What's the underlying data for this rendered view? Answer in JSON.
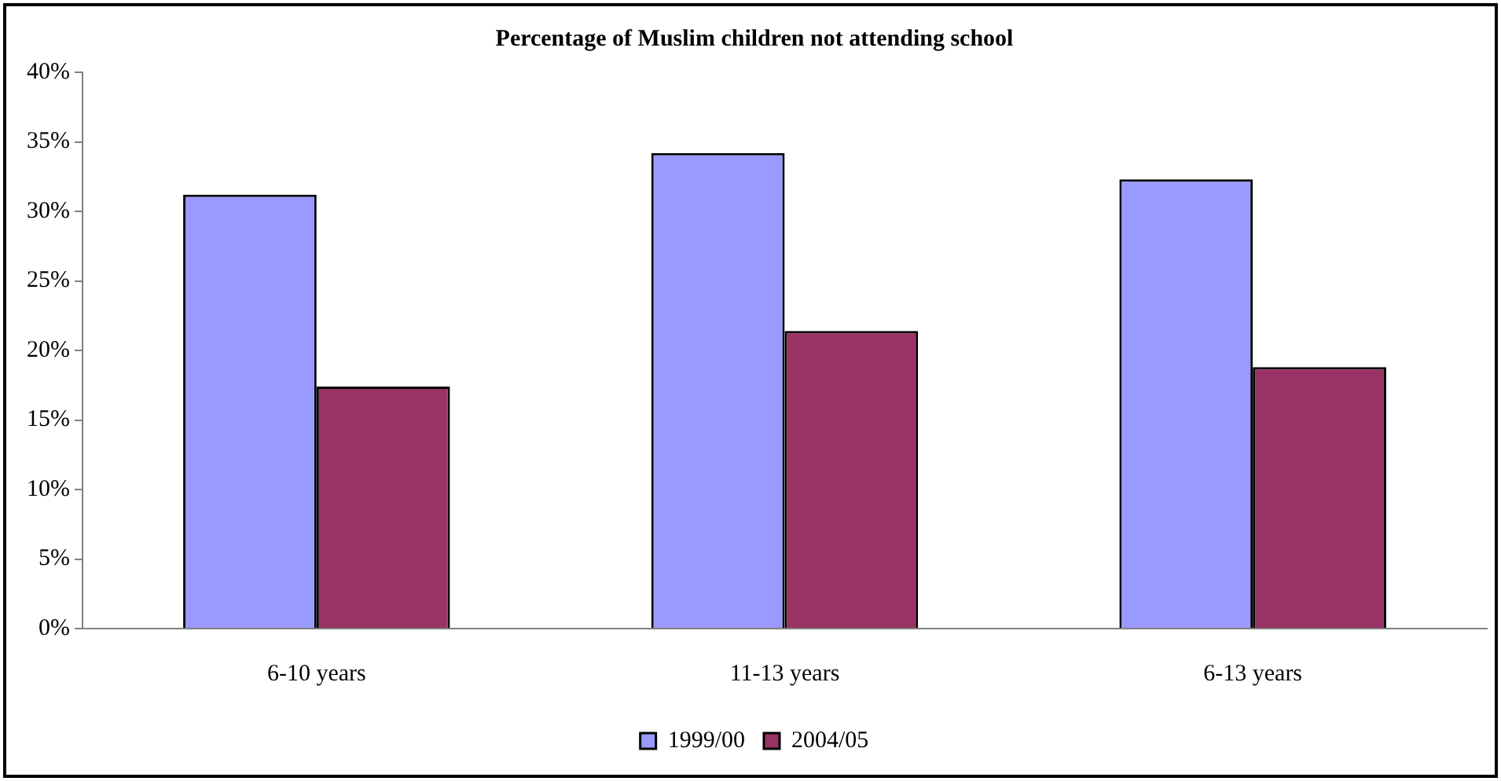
{
  "chart_data": {
    "type": "bar",
    "title": "Percentage of Muslim children not attending school",
    "categories": [
      "6-10 years",
      "11-13 years",
      "6-13 years"
    ],
    "series": [
      {
        "name": "1999/00",
        "color": "#9999ff",
        "values": [
          31.2,
          34.2,
          32.3
        ]
      },
      {
        "name": "2004/05",
        "color": "#993366",
        "values": [
          17.4,
          21.4,
          18.8
        ]
      }
    ],
    "ylim": [
      0,
      40
    ],
    "yticks": [
      {
        "value": 0,
        "label": "0%"
      },
      {
        "value": 5,
        "label": "5%"
      },
      {
        "value": 10,
        "label": "10%"
      },
      {
        "value": 15,
        "label": "15%"
      },
      {
        "value": 20,
        "label": "20%"
      },
      {
        "value": 25,
        "label": "25%"
      },
      {
        "value": 30,
        "label": "30%"
      },
      {
        "value": 35,
        "label": "35%"
      },
      {
        "value": 40,
        "label": "40%"
      }
    ],
    "grid": false,
    "legend": "bottom"
  }
}
